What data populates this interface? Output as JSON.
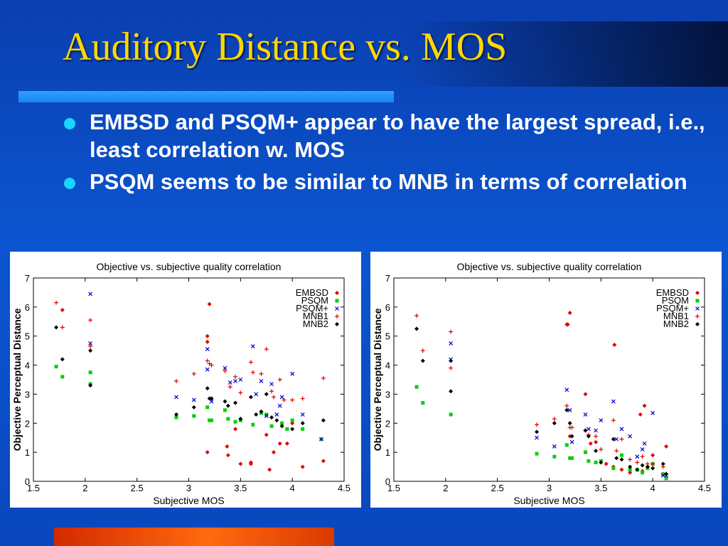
{
  "slide": {
    "title": "Auditory Distance vs. MOS",
    "bullets": [
      "EMBSD and PSQM+ appear to have the largest spread, i.e., least correlation w. MOS",
      "PSQM seems to be similar to MNB in terms of correlation"
    ],
    "colors": {
      "title": "#ffd700",
      "bullet": "#17d6ff",
      "text": "#ffffff"
    }
  },
  "chart_data": [
    {
      "type": "scatter",
      "title": "Objective vs. subjective quality correlation",
      "xlabel": "Subjective MOS",
      "ylabel": "Objective Perceptual Distance",
      "xlim": [
        1.5,
        4.5
      ],
      "ylim": [
        0,
        7
      ],
      "xticks": [
        "1.5",
        "2",
        "2.5",
        "3",
        "3.5",
        "4",
        "4.5"
      ],
      "yticks": [
        "0",
        "1",
        "2",
        "3",
        "4",
        "5",
        "6",
        "7"
      ],
      "grid": false,
      "legend": "top-right",
      "series": [
        {
          "name": "EMBSD",
          "marker": "diamond",
          "color": "#e00000",
          "points": [
            [
              1.78,
              5.9
            ],
            [
              3.2,
              6.1
            ],
            [
              3.18,
              5.0
            ],
            [
              3.18,
              4.8
            ],
            [
              3.18,
              1.0
            ],
            [
              3.37,
              1.2
            ],
            [
              3.38,
              0.9
            ],
            [
              3.45,
              1.8
            ],
            [
              3.5,
              0.6
            ],
            [
              3.6,
              0.65
            ],
            [
              3.6,
              0.6
            ],
            [
              3.7,
              2.4
            ],
            [
              3.75,
              1.6
            ],
            [
              3.78,
              0.4
            ],
            [
              3.82,
              1.0
            ],
            [
              3.88,
              1.3
            ],
            [
              3.95,
              1.3
            ],
            [
              4.0,
              2.0
            ],
            [
              4.1,
              0.5
            ],
            [
              4.3,
              0.7
            ]
          ]
        },
        {
          "name": "PSQM",
          "marker": "square",
          "color": "#00d000",
          "points": [
            [
              1.72,
              3.95
            ],
            [
              1.78,
              3.6
            ],
            [
              2.05,
              3.75
            ],
            [
              2.05,
              3.35
            ],
            [
              2.88,
              2.2
            ],
            [
              3.05,
              2.25
            ],
            [
              3.18,
              2.55
            ],
            [
              3.2,
              2.1
            ],
            [
              3.22,
              2.1
            ],
            [
              3.35,
              2.45
            ],
            [
              3.38,
              2.15
            ],
            [
              3.45,
              2.05
            ],
            [
              3.5,
              2.1
            ],
            [
              3.62,
              1.95
            ],
            [
              3.7,
              2.35
            ],
            [
              3.75,
              2.3
            ],
            [
              3.8,
              1.9
            ],
            [
              3.9,
              2.0
            ],
            [
              3.95,
              1.8
            ],
            [
              4.0,
              2.1
            ],
            [
              4.1,
              1.8
            ],
            [
              4.28,
              1.45
            ]
          ]
        },
        {
          "name": "PSQM+",
          "marker": "x",
          "color": "#0000d0",
          "points": [
            [
              2.05,
              6.45
            ],
            [
              2.05,
              4.75
            ],
            [
              2.88,
              2.9
            ],
            [
              3.05,
              2.8
            ],
            [
              3.18,
              4.55
            ],
            [
              3.18,
              3.85
            ],
            [
              3.22,
              2.75
            ],
            [
              3.35,
              3.9
            ],
            [
              3.4,
              3.4
            ],
            [
              3.45,
              3.45
            ],
            [
              3.5,
              3.5
            ],
            [
              3.62,
              4.65
            ],
            [
              3.65,
              3.0
            ],
            [
              3.7,
              3.45
            ],
            [
              3.75,
              2.25
            ],
            [
              3.8,
              3.35
            ],
            [
              3.85,
              2.3
            ],
            [
              3.88,
              2.6
            ],
            [
              3.9,
              2.9
            ],
            [
              4.0,
              3.7
            ],
            [
              4.1,
              2.3
            ],
            [
              4.28,
              1.45
            ]
          ]
        },
        {
          "name": "MNB1",
          "marker": "plus",
          "color": "#e00000",
          "points": [
            [
              1.72,
              6.15
            ],
            [
              1.78,
              5.3
            ],
            [
              2.05,
              5.55
            ],
            [
              2.05,
              4.65
            ],
            [
              2.88,
              3.45
            ],
            [
              3.05,
              3.7
            ],
            [
              3.18,
              4.15
            ],
            [
              3.2,
              4.05
            ],
            [
              3.22,
              4.0
            ],
            [
              3.35,
              3.8
            ],
            [
              3.4,
              3.25
            ],
            [
              3.45,
              3.6
            ],
            [
              3.5,
              3.05
            ],
            [
              3.6,
              4.1
            ],
            [
              3.62,
              3.75
            ],
            [
              3.7,
              3.7
            ],
            [
              3.75,
              4.55
            ],
            [
              3.8,
              3.1
            ],
            [
              3.82,
              2.9
            ],
            [
              3.88,
              3.5
            ],
            [
              3.92,
              2.8
            ],
            [
              4.0,
              2.8
            ],
            [
              4.1,
              2.85
            ],
            [
              4.3,
              3.55
            ]
          ]
        },
        {
          "name": "MNB2",
          "marker": "diamond",
          "color": "#000000",
          "points": [
            [
              1.72,
              5.3
            ],
            [
              1.78,
              4.2
            ],
            [
              2.05,
              4.5
            ],
            [
              2.05,
              3.3
            ],
            [
              2.88,
              2.3
            ],
            [
              3.05,
              2.55
            ],
            [
              3.18,
              3.2
            ],
            [
              3.2,
              2.85
            ],
            [
              3.22,
              2.85
            ],
            [
              3.35,
              2.75
            ],
            [
              3.38,
              2.6
            ],
            [
              3.45,
              2.7
            ],
            [
              3.5,
              2.15
            ],
            [
              3.6,
              2.9
            ],
            [
              3.65,
              2.3
            ],
            [
              3.7,
              2.4
            ],
            [
              3.75,
              3.0
            ],
            [
              3.8,
              2.2
            ],
            [
              3.85,
              2.1
            ],
            [
              3.9,
              1.9
            ],
            [
              4.0,
              1.8
            ],
            [
              4.1,
              2.0
            ],
            [
              4.3,
              2.1
            ]
          ]
        }
      ]
    },
    {
      "type": "scatter",
      "title": "Objective vs. subjective quality correlation",
      "xlabel": "Subjective MOS",
      "ylabel": "Objective Perceptual Distance",
      "xlim": [
        1.5,
        4.5
      ],
      "ylim": [
        0,
        7
      ],
      "xticks": [
        "1.5",
        "2",
        "2.5",
        "3",
        "3.5",
        "4",
        "4.5"
      ],
      "yticks": [
        "0",
        "1",
        "2",
        "3",
        "4",
        "5",
        "6",
        "7"
      ],
      "grid": false,
      "legend": "top-right",
      "series": [
        {
          "name": "EMBSD",
          "marker": "diamond",
          "color": "#e00000",
          "points": [
            [
              3.2,
              5.8
            ],
            [
              3.18,
              5.4
            ],
            [
              3.17,
              5.4
            ],
            [
              3.63,
              4.7
            ],
            [
              3.35,
              3.0
            ],
            [
              3.88,
              2.3
            ],
            [
              3.92,
              2.6
            ],
            [
              3.2,
              1.55
            ],
            [
              3.4,
              1.3
            ],
            [
              3.45,
              1.35
            ],
            [
              3.55,
              0.6
            ],
            [
              3.62,
              0.5
            ],
            [
              3.7,
              0.4
            ],
            [
              3.78,
              0.3
            ],
            [
              3.85,
              0.4
            ],
            [
              3.9,
              0.35
            ],
            [
              3.95,
              0.5
            ],
            [
              4.0,
              0.9
            ],
            [
              4.1,
              0.25
            ],
            [
              4.13,
              1.2
            ]
          ]
        },
        {
          "name": "PSQM",
          "marker": "square",
          "color": "#00d000",
          "points": [
            [
              1.72,
              3.25
            ],
            [
              1.78,
              2.7
            ],
            [
              2.05,
              2.3
            ],
            [
              2.88,
              0.95
            ],
            [
              3.05,
              0.85
            ],
            [
              3.17,
              1.25
            ],
            [
              3.2,
              0.8
            ],
            [
              3.22,
              0.8
            ],
            [
              3.35,
              1.0
            ],
            [
              3.38,
              0.7
            ],
            [
              3.45,
              0.65
            ],
            [
              3.5,
              0.7
            ],
            [
              3.62,
              0.45
            ],
            [
              3.7,
              0.9
            ],
            [
              3.78,
              0.4
            ],
            [
              3.85,
              0.4
            ],
            [
              3.9,
              0.3
            ],
            [
              3.95,
              0.45
            ],
            [
              4.0,
              0.6
            ],
            [
              4.1,
              0.25
            ],
            [
              4.13,
              0.1
            ]
          ]
        },
        {
          "name": "PSQM+",
          "marker": "x",
          "color": "#0000d0",
          "points": [
            [
              2.05,
              4.75
            ],
            [
              2.05,
              4.2
            ],
            [
              2.88,
              1.5
            ],
            [
              3.05,
              1.2
            ],
            [
              3.17,
              3.15
            ],
            [
              3.2,
              2.45
            ],
            [
              3.22,
              1.35
            ],
            [
              3.35,
              2.3
            ],
            [
              3.38,
              1.8
            ],
            [
              3.45,
              1.75
            ],
            [
              3.5,
              2.1
            ],
            [
              3.62,
              2.75
            ],
            [
              3.65,
              1.45
            ],
            [
              3.7,
              1.8
            ],
            [
              3.78,
              1.55
            ],
            [
              3.85,
              0.85
            ],
            [
              3.9,
              1.1
            ],
            [
              3.92,
              1.3
            ],
            [
              4.0,
              2.35
            ],
            [
              4.1,
              0.2
            ],
            [
              4.13,
              0.2
            ]
          ]
        },
        {
          "name": "MNB1",
          "marker": "plus",
          "color": "#e00000",
          "points": [
            [
              1.72,
              5.7
            ],
            [
              1.78,
              4.5
            ],
            [
              2.05,
              5.15
            ],
            [
              2.05,
              3.9
            ],
            [
              2.88,
              1.95
            ],
            [
              3.05,
              2.15
            ],
            [
              3.17,
              2.6
            ],
            [
              3.2,
              1.85
            ],
            [
              3.22,
              1.85
            ],
            [
              3.35,
              1.75
            ],
            [
              3.38,
              1.6
            ],
            [
              3.45,
              1.55
            ],
            [
              3.5,
              1.1
            ],
            [
              3.62,
              2.1
            ],
            [
              3.65,
              1.05
            ],
            [
              3.7,
              1.45
            ],
            [
              3.78,
              0.75
            ],
            [
              3.85,
              0.65
            ],
            [
              3.9,
              0.85
            ],
            [
              3.95,
              0.6
            ],
            [
              4.0,
              0.6
            ],
            [
              4.1,
              0.5
            ],
            [
              4.13,
              0.25
            ]
          ]
        },
        {
          "name": "MNB2",
          "marker": "diamond",
          "color": "#000000",
          "points": [
            [
              1.72,
              5.25
            ],
            [
              1.78,
              4.15
            ],
            [
              2.05,
              4.15
            ],
            [
              2.05,
              3.1
            ],
            [
              2.88,
              1.7
            ],
            [
              3.05,
              2.0
            ],
            [
              3.17,
              2.45
            ],
            [
              3.2,
              2.0
            ],
            [
              3.22,
              1.55
            ],
            [
              3.35,
              1.75
            ],
            [
              3.38,
              1.55
            ],
            [
              3.45,
              1.05
            ],
            [
              3.5,
              0.65
            ],
            [
              3.62,
              1.45
            ],
            [
              3.65,
              0.8
            ],
            [
              3.7,
              0.75
            ],
            [
              3.78,
              0.5
            ],
            [
              3.85,
              0.4
            ],
            [
              3.9,
              0.55
            ],
            [
              3.95,
              0.5
            ],
            [
              4.0,
              0.45
            ],
            [
              4.1,
              0.6
            ],
            [
              4.13,
              0.25
            ]
          ]
        }
      ]
    }
  ]
}
